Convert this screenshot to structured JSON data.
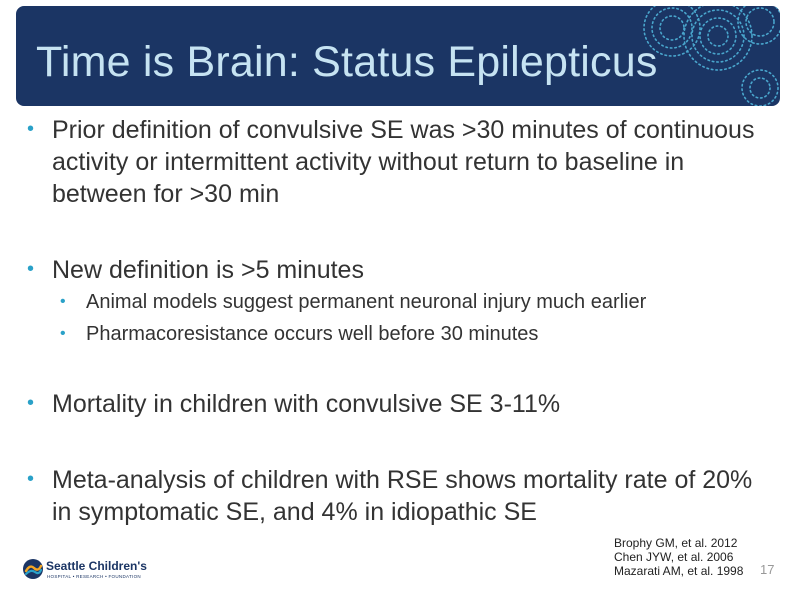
{
  "slide": {
    "title": "Time is Brain: Status Epilepticus",
    "bullets": [
      {
        "text": "Prior definition of convulsive SE was >30 minutes of continuous activity or intermittent activity without return to baseline in between for >30 min",
        "sub": []
      },
      {
        "text": "New definition is >5 minutes",
        "sub": [
          "Animal models suggest permanent neuronal injury much earlier",
          "Pharmacoresistance occurs well before 30 minutes"
        ]
      },
      {
        "text": "Mortality in children with convulsive SE 3-11%",
        "sub": []
      },
      {
        "text": "Meta-analysis of children with RSE shows mortality rate of 20% in symptomatic SE, and 4% in idiopathic SE",
        "sub": []
      }
    ],
    "references": [
      "Brophy GM, et al. 2012",
      "Chen JYW, et al. 2006",
      "Mazarati AM, et al. 1998"
    ],
    "page_number": "17",
    "bullet_symbol": "•",
    "logo": {
      "name": "Seattle Children's",
      "subtitle": "HOSPITAL • RESEARCH • FOUNDATION"
    }
  },
  "colors": {
    "header_bg": "#1b3564",
    "title_text": "#c6e3f2",
    "bullet_accent": "#2aa1c8",
    "body_text": "#333333"
  }
}
